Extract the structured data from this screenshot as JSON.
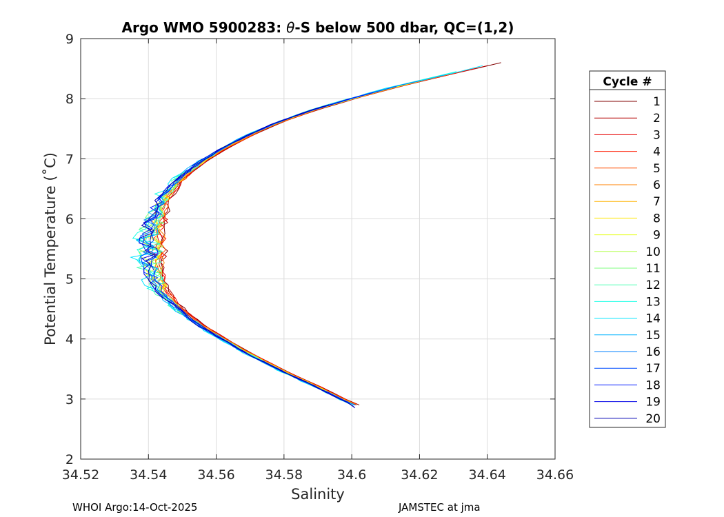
{
  "chart_data": {
    "type": "line",
    "title_prefix": "Argo WMO 5900283: ",
    "title_symbol": "θ",
    "title_suffix": "-S below 500 dbar,  QC=(1,2)",
    "xlabel": "Salinity",
    "ylabel": "Potential Temperature (˚C)",
    "xlim": [
      34.52,
      34.66
    ],
    "ylim": [
      2,
      9
    ],
    "xticks": [
      34.52,
      34.54,
      34.56,
      34.58,
      34.6,
      34.62,
      34.64,
      34.66
    ],
    "xtick_labels": [
      "34.52",
      "34.54",
      "34.56",
      "34.58",
      "34.6",
      "34.62",
      "34.64",
      "34.66"
    ],
    "yticks": [
      2,
      3,
      4,
      5,
      6,
      7,
      8,
      9
    ],
    "ytick_labels": [
      "2",
      "3",
      "4",
      "5",
      "6",
      "7",
      "8",
      "9"
    ],
    "grid": true,
    "legend_title": "Cycle #",
    "legend_position": "outside-right",
    "base_profile": {
      "temperature": [
        8.6,
        8.4,
        8.2,
        8.0,
        7.8,
        7.6,
        7.4,
        7.2,
        7.0,
        6.8,
        6.6,
        6.4,
        6.2,
        6.0,
        5.8,
        5.6,
        5.4,
        5.2,
        5.0,
        4.8,
        4.6,
        4.4,
        4.2,
        4.0,
        3.8,
        3.6,
        3.4,
        3.2,
        3.0,
        2.9
      ],
      "salinity": [
        34.643,
        34.628,
        34.613,
        34.6,
        34.588,
        34.578,
        34.57,
        34.563,
        34.557,
        34.552,
        34.548,
        34.545,
        34.543,
        34.542,
        34.541,
        34.541,
        34.541,
        34.541,
        34.542,
        34.544,
        34.547,
        34.551,
        34.556,
        34.562,
        34.568,
        34.575,
        34.582,
        34.59,
        34.597,
        34.601
      ]
    },
    "series": [
      {
        "name": "1",
        "color": "#800000",
        "offset": 0.0035,
        "noise": 0.0005,
        "start_t": 8.6,
        "end_t": 2.9
      },
      {
        "name": "2",
        "color": "#b30000",
        "offset": 0.003,
        "noise": 0.0006,
        "start_t": 8.55,
        "end_t": 2.95
      },
      {
        "name": "3",
        "color": "#e60000",
        "offset": 0.0028,
        "noise": 0.0007,
        "start_t": 8.5,
        "end_t": 2.92
      },
      {
        "name": "4",
        "color": "#ff1a00",
        "offset": 0.0025,
        "noise": 0.0008,
        "start_t": 8.45,
        "end_t": 2.9
      },
      {
        "name": "5",
        "color": "#ff4d00",
        "offset": 0.002,
        "noise": 0.0009,
        "start_t": 8.4,
        "end_t": 2.93
      },
      {
        "name": "6",
        "color": "#ff8000",
        "offset": 0.0015,
        "noise": 0.001,
        "start_t": 8.35,
        "end_t": 2.91
      },
      {
        "name": "7",
        "color": "#ffb300",
        "offset": 0.001,
        "noise": 0.0011,
        "start_t": 8.3,
        "end_t": 2.94
      },
      {
        "name": "8",
        "color": "#ffe600",
        "offset": 0.0005,
        "noise": 0.0012,
        "start_t": 8.3,
        "end_t": 2.9
      },
      {
        "name": "9",
        "color": "#e6ff1a",
        "offset": 0.0,
        "noise": 0.0013,
        "start_t": 8.3,
        "end_t": 2.92
      },
      {
        "name": "10",
        "color": "#b3ff4d",
        "offset": -0.0003,
        "noise": 0.0014,
        "start_t": 8.3,
        "end_t": 2.95
      },
      {
        "name": "11",
        "color": "#80ff80",
        "offset": -0.0006,
        "noise": 0.0016,
        "start_t": 8.25,
        "end_t": 2.9
      },
      {
        "name": "12",
        "color": "#4dffb3",
        "offset": -0.001,
        "noise": 0.0018,
        "start_t": 8.35,
        "end_t": 2.93
      },
      {
        "name": "13",
        "color": "#1affe6",
        "offset": -0.0015,
        "noise": 0.002,
        "start_t": 8.45,
        "end_t": 2.9
      },
      {
        "name": "14",
        "color": "#00e6ff",
        "offset": -0.002,
        "noise": 0.0018,
        "start_t": 8.55,
        "end_t": 2.92
      },
      {
        "name": "15",
        "color": "#00b3ff",
        "offset": -0.0015,
        "noise": 0.0014,
        "start_t": 8.4,
        "end_t": 2.9
      },
      {
        "name": "16",
        "color": "#0080ff",
        "offset": -0.0012,
        "noise": 0.0012,
        "start_t": 8.3,
        "end_t": 2.95
      },
      {
        "name": "17",
        "color": "#004dff",
        "offset": -0.001,
        "noise": 0.0011,
        "start_t": 8.2,
        "end_t": 2.9
      },
      {
        "name": "18",
        "color": "#001aff",
        "offset": -0.0008,
        "noise": 0.001,
        "start_t": 8.1,
        "end_t": 2.88
      },
      {
        "name": "19",
        "color": "#0000e6",
        "offset": -0.001,
        "noise": 0.0012,
        "start_t": 8.0,
        "end_t": 2.85
      },
      {
        "name": "20",
        "color": "#0000b3",
        "offset": -0.0012,
        "noise": 0.001,
        "start_t": 7.9,
        "end_t": 2.87
      }
    ]
  },
  "footer": {
    "left": "WHOI Argo:14-Oct-2025",
    "right": "JAMSTEC at jma"
  }
}
